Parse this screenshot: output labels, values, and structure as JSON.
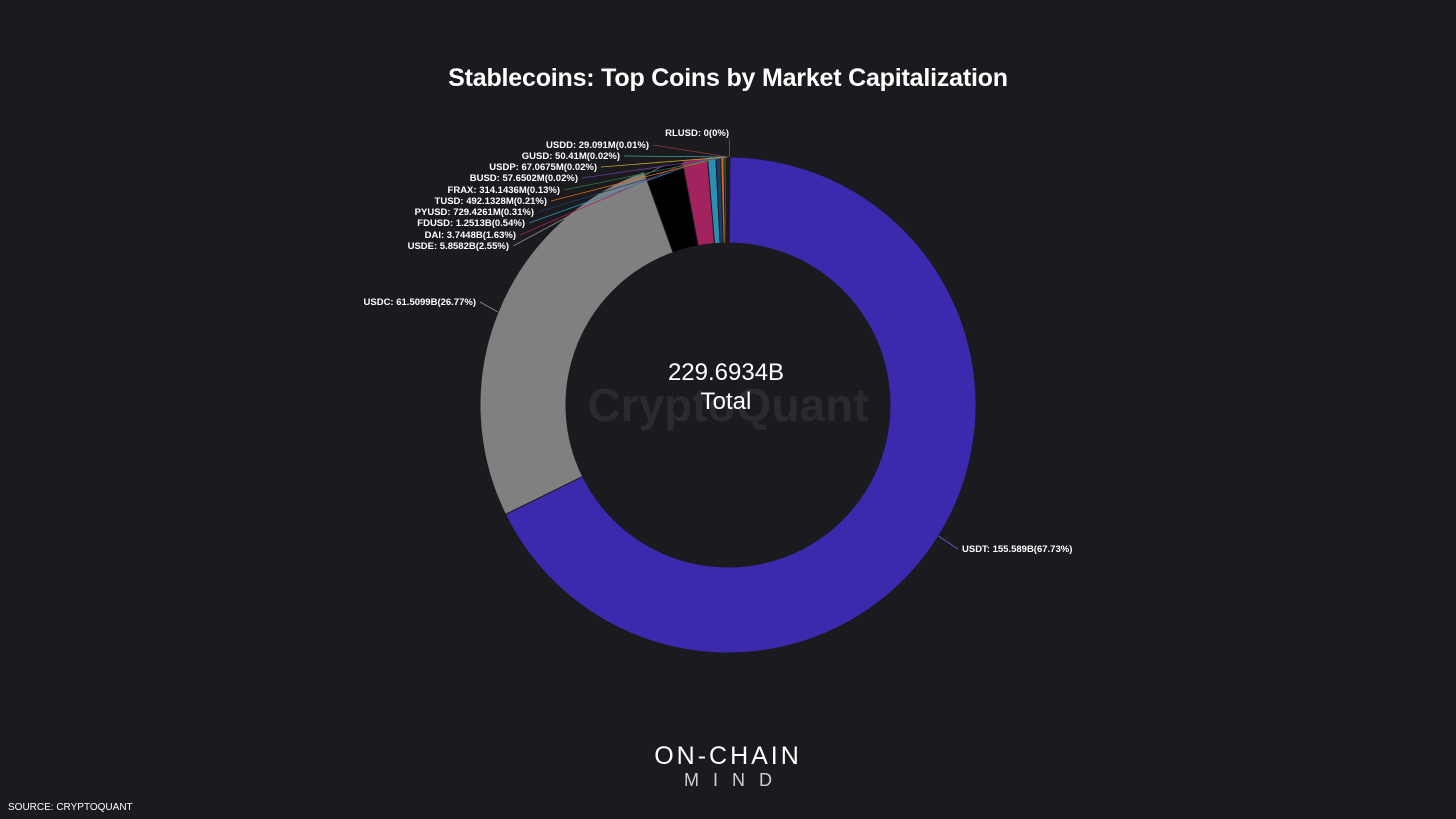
{
  "title": "Stablecoins: Top Coins by Market Capitalization",
  "watermark": "CryptoQuant",
  "center": {
    "value": "229.6934B",
    "label": "Total"
  },
  "brand": {
    "line1": "ON-CHAIN",
    "line2": "MIND"
  },
  "source": "SOURCE: CRYPTOQUANT",
  "chart_data": {
    "type": "pie",
    "variant": "donut",
    "total": "229.6934B",
    "slices": [
      {
        "name": "USDT",
        "value": 155.589,
        "unit": "B",
        "label": "USDT: 155.589B(67.73%)",
        "percent": 67.73,
        "color": "#3b2aae"
      },
      {
        "name": "USDC",
        "value": 61.5099,
        "unit": "B",
        "label": "USDC: 61.5099B(26.77%)",
        "percent": 26.77,
        "color": "#808080"
      },
      {
        "name": "USDE",
        "value": 5.8582,
        "unit": "B",
        "label": "USDE: 5.8582B(2.55%)",
        "percent": 2.55,
        "color": "#000000"
      },
      {
        "name": "DAI",
        "value": 3.7448,
        "unit": "B",
        "label": "DAI: 3.7448B(1.63%)",
        "percent": 1.63,
        "color": "#a3235e"
      },
      {
        "name": "FDUSD",
        "value": 1.2513,
        "unit": "B",
        "label": "FDUSD: 1.2513B(0.54%)",
        "percent": 0.54,
        "color": "#2b8fb5"
      },
      {
        "name": "PYUSD",
        "value": 729.4261,
        "unit": "M",
        "label": "PYUSD: 729.4261M(0.31%)",
        "percent": 0.31,
        "color": "#1d3f63"
      },
      {
        "name": "TUSD",
        "value": 492.1328,
        "unit": "M",
        "label": "TUSD: 492.1328M(0.21%)",
        "percent": 0.21,
        "color": "#d46a1a"
      },
      {
        "name": "FRAX",
        "value": 314.1436,
        "unit": "M",
        "label": "FRAX: 314.1436M(0.13%)",
        "percent": 0.13,
        "color": "#2f7d4a"
      },
      {
        "name": "BUSD",
        "value": 57.6502,
        "unit": "M",
        "label": "BUSD: 57.6502M(0.02%)",
        "percent": 0.02,
        "color": "#6b3fa0"
      },
      {
        "name": "USDP",
        "value": 67.0675,
        "unit": "M",
        "label": "USDP: 67.0675M(0.02%)",
        "percent": 0.02,
        "color": "#c9a227"
      },
      {
        "name": "GUSD",
        "value": 50.41,
        "unit": "M",
        "label": "GUSD: 50.41M(0.02%)",
        "percent": 0.02,
        "color": "#4a9e9e"
      },
      {
        "name": "USDD",
        "value": 29.091,
        "unit": "M",
        "label": "USDD: 29.091M(0.01%)",
        "percent": 0.01,
        "color": "#8c3a3a"
      },
      {
        "name": "RLUSD",
        "value": 0,
        "unit": "",
        "label": "RLUSD: 0(0%)",
        "percent": 0,
        "color": "#d0312d"
      }
    ]
  }
}
